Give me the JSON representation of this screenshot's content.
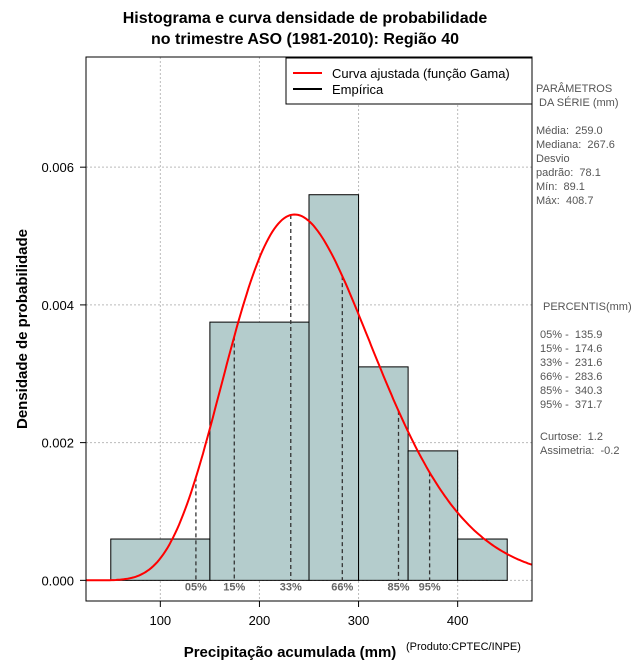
{
  "chart_data": {
    "type": "bar",
    "title_line1": "Histograma e curva densidade de probabilidade",
    "title_line2": "no trimestre ASO (1981-2010): Região 40",
    "xlabel": "Precipitação acumulada (mm)",
    "ylabel": "Densidade de probabilidade",
    "credit": "(Produto:CPTEC/INPE)",
    "xlim": [
      25,
      475
    ],
    "ylim": [
      -0.0003,
      0.0076
    ],
    "x_ticks": [
      100,
      200,
      300,
      400
    ],
    "x_tick_labels": [
      "100",
      "200",
      "300",
      "400"
    ],
    "y_ticks": [
      0.0,
      0.002,
      0.004,
      0.006
    ],
    "y_tick_labels": [
      "0.000",
      "0.002",
      "0.004",
      "0.006"
    ],
    "grid": true,
    "bins": [
      {
        "x0": 50,
        "x1": 150,
        "density": 0.0006
      },
      {
        "x0": 150,
        "x1": 250,
        "density": 0.00375
      },
      {
        "x0": 250,
        "x1": 300,
        "density": 0.0056
      },
      {
        "x0": 300,
        "x1": 350,
        "density": 0.0031
      },
      {
        "x0": 350,
        "x1": 400,
        "density": 0.00188
      },
      {
        "x0": 400,
        "x1": 450,
        "density": 0.0006
      }
    ],
    "percentile_lines": [
      {
        "label": "05%",
        "x": 135.9
      },
      {
        "label": "15%",
        "x": 174.6
      },
      {
        "label": "33%",
        "x": 231.6
      },
      {
        "label": "66%",
        "x": 283.6
      },
      {
        "label": "85%",
        "x": 340.3
      },
      {
        "label": "95%",
        "x": 371.7
      }
    ],
    "gamma_fit": {
      "mean": 259.0,
      "sd": 78.1
    },
    "legend": [
      {
        "label": "Curva ajustada (função Gama)",
        "color": "#ff0000"
      },
      {
        "label": "Empírica",
        "color": "#000000"
      }
    ],
    "legend_position": "top-right",
    "colors": {
      "bar_fill": "#b4cccc",
      "curve": "#ff0000",
      "grid": "#bbbbbb"
    }
  },
  "side_panel": {
    "params_title": "PARÂMETROS\n DA SÉRIE (mm)",
    "params": "Média:  259.0\nMediana:  267.6\nDesvio\npadrão:  78.1\nMín:  89.1\nMáx:  408.7",
    "percentis_title": "PERCENTIS(mm)",
    "percentis": "05% -  135.9\n15% -  174.6\n33% -  231.6\n66% -  283.6\n85% -  340.3\n95% -  371.7",
    "stats": "Curtose:  1.2\nAssimetria:  -0.2"
  }
}
